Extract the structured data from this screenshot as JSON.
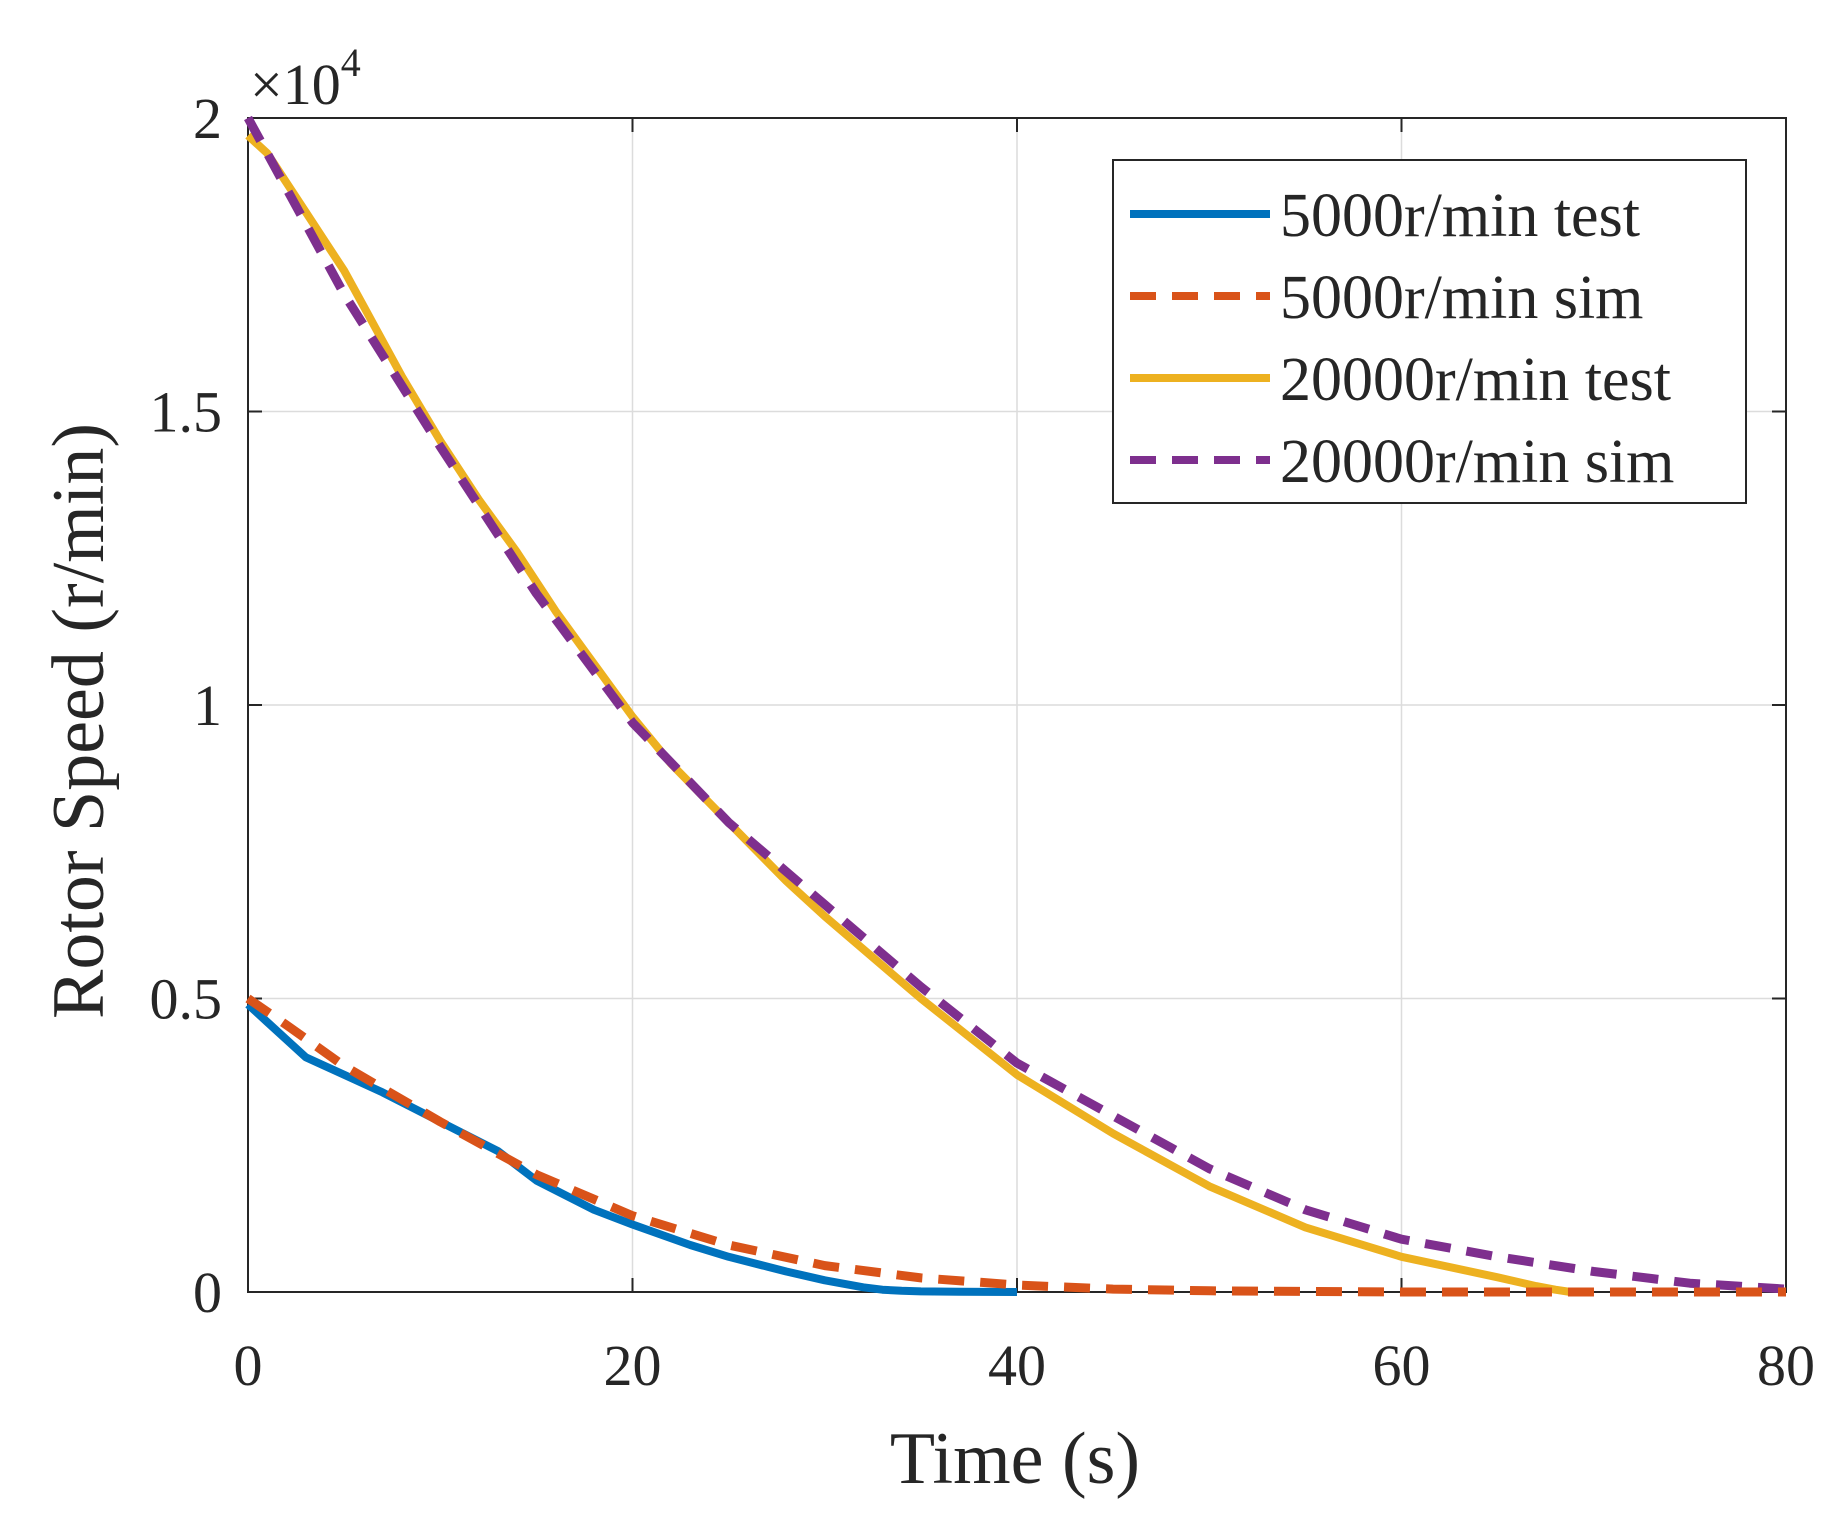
{
  "chart_data": {
    "type": "line",
    "xlabel": "Time (s)",
    "ylabel": "Rotor Speed (r/min)",
    "y_exponent_label": "×10",
    "y_exponent_power": "4",
    "xlim": [
      0,
      80
    ],
    "ylim": [
      0,
      2
    ],
    "x_ticks": [
      0,
      20,
      40,
      60,
      80
    ],
    "x_tick_labels": [
      "0",
      "20",
      "40",
      "60",
      "80"
    ],
    "y_ticks": [
      0,
      0.5,
      1,
      1.5,
      2
    ],
    "y_tick_labels": [
      "0",
      "0.5",
      "1",
      "1.5",
      "2"
    ],
    "grid": true,
    "legend_position": "top-right",
    "series": [
      {
        "name": "5000r/min test",
        "color": "#0072BD",
        "dash": "solid",
        "x": [
          0,
          1,
          2,
          3,
          5,
          7,
          10,
          13,
          15,
          18,
          20,
          23,
          25,
          28,
          30,
          32,
          33,
          34,
          35,
          37,
          40
        ],
        "y": [
          0.49,
          0.46,
          0.43,
          0.4,
          0.37,
          0.34,
          0.29,
          0.24,
          0.19,
          0.14,
          0.115,
          0.08,
          0.06,
          0.035,
          0.02,
          0.008,
          0.004,
          0.002,
          0.001,
          0.0005,
          0.0
        ]
      },
      {
        "name": "5000r/min sim",
        "color": "#D95319",
        "dash": "dashed",
        "x": [
          0,
          2,
          5,
          10,
          15,
          20,
          25,
          30,
          35,
          40,
          45,
          50,
          60,
          70,
          80
        ],
        "y": [
          0.5,
          0.455,
          0.385,
          0.29,
          0.2,
          0.13,
          0.08,
          0.045,
          0.024,
          0.012,
          0.005,
          0.002,
          0.0,
          0.0,
          0.0
        ]
      },
      {
        "name": "20000r/min test",
        "color": "#EDB120",
        "dash": "solid",
        "x": [
          0,
          1,
          2,
          3,
          4,
          5,
          6,
          8,
          10,
          12,
          14,
          16,
          18,
          20,
          22,
          25,
          28,
          30,
          35,
          40,
          45,
          50,
          55,
          60,
          65,
          67,
          68,
          68.8
        ],
        "y": [
          1.97,
          1.94,
          1.89,
          1.84,
          1.79,
          1.74,
          1.68,
          1.56,
          1.45,
          1.35,
          1.26,
          1.16,
          1.07,
          0.98,
          0.9,
          0.8,
          0.7,
          0.64,
          0.5,
          0.37,
          0.27,
          0.18,
          0.11,
          0.06,
          0.025,
          0.01,
          0.004,
          0.0
        ]
      },
      {
        "name": "20000r/min sim",
        "color": "#7E2F8E",
        "dash": "dashed",
        "x": [
          0,
          2,
          5,
          10,
          15,
          20,
          25,
          30,
          35,
          40,
          45,
          50,
          55,
          60,
          65,
          70,
          75,
          80
        ],
        "y": [
          2.0,
          1.88,
          1.7,
          1.44,
          1.19,
          0.97,
          0.8,
          0.66,
          0.52,
          0.39,
          0.3,
          0.21,
          0.14,
          0.09,
          0.06,
          0.035,
          0.015,
          0.005
        ]
      }
    ]
  }
}
